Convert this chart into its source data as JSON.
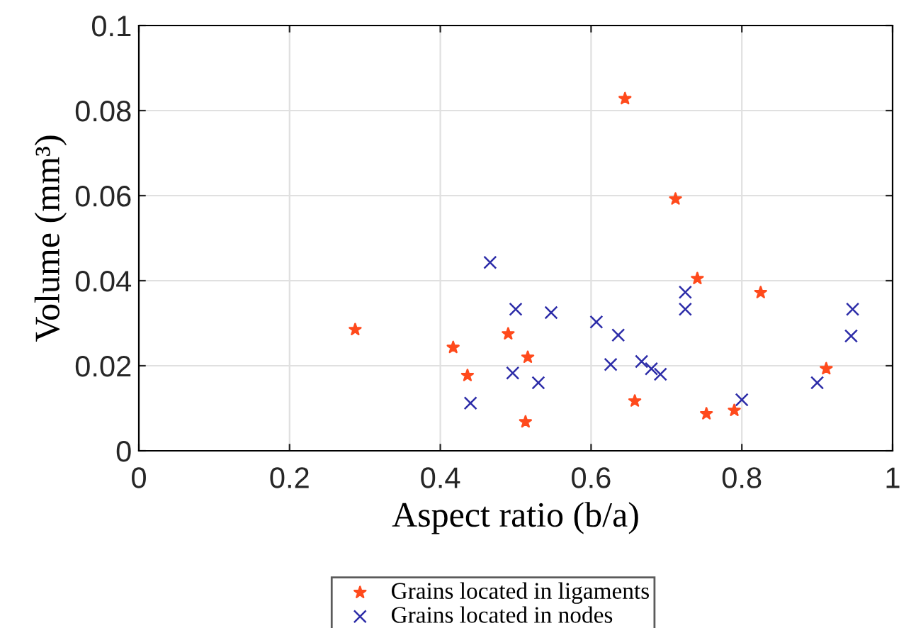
{
  "chart_data": {
    "type": "scatter",
    "xlabel": "Aspect ratio (b/a)",
    "ylabel": "Volume (mm³)",
    "xlim": [
      0,
      1
    ],
    "xticks": [
      0,
      0.2,
      0.4,
      0.6,
      0.8,
      1
    ],
    "ylim": [
      0,
      0.1
    ],
    "yticks": [
      0,
      0.02,
      0.04,
      0.06,
      0.08,
      0.1
    ],
    "grid": true,
    "legend": "bottom",
    "series": [
      {
        "name": "Grains located in ligaments",
        "color": "#ff4a1c",
        "marker": "star",
        "x": [
          0.287,
          0.417,
          0.436,
          0.49,
          0.513,
          0.516,
          0.645,
          0.658,
          0.712,
          0.741,
          0.753,
          0.79,
          0.825,
          0.912
        ],
        "values": [
          0.0285,
          0.0243,
          0.0177,
          0.0275,
          0.0068,
          0.022,
          0.0828,
          0.0117,
          0.0592,
          0.0405,
          0.0087,
          0.0095,
          0.0372,
          0.0193
        ]
      },
      {
        "name": "Grains located in nodes",
        "color": "#2c2ca8",
        "marker": "cross",
        "x": [
          0.44,
          0.466,
          0.496,
          0.5,
          0.53,
          0.547,
          0.607,
          0.626,
          0.636,
          0.667,
          0.68,
          0.692,
          0.725,
          0.725,
          0.8,
          0.9,
          0.945,
          0.947
        ],
        "values": [
          0.0112,
          0.0443,
          0.0183,
          0.0333,
          0.016,
          0.0325,
          0.0303,
          0.0203,
          0.0272,
          0.021,
          0.0193,
          0.018,
          0.0373,
          0.0333,
          0.012,
          0.016,
          0.027,
          0.0333
        ]
      }
    ]
  }
}
